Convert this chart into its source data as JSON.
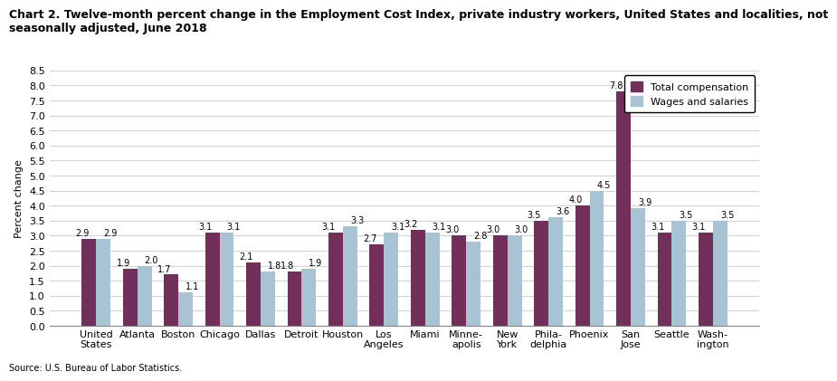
{
  "title": "Chart 2. Twelve-month percent change in the Employment Cost Index, private industry workers, United States and localities, not\nseasonally adjusted, June 2018",
  "ylabel": "Percent change",
  "source": "Source: U.S. Bureau of Labor Statistics.",
  "categories": [
    "United\nStates",
    "Atlanta",
    "Boston",
    "Chicago",
    "Dallas",
    "Detroit",
    "Houston",
    "Los\nAngeles",
    "Miami",
    "Minne-\napolis",
    "New\nYork",
    "Phila-\ndelphia",
    "Phoenix",
    "San\nJose",
    "Seattle",
    "Wash-\nington"
  ],
  "total_compensation": [
    2.9,
    1.9,
    1.7,
    3.1,
    2.1,
    1.8,
    3.1,
    2.7,
    3.2,
    3.0,
    3.0,
    3.5,
    4.0,
    7.8,
    3.1,
    3.1
  ],
  "wages_salaries": [
    2.9,
    2.0,
    1.1,
    3.1,
    1.8,
    1.9,
    3.3,
    3.1,
    3.1,
    2.8,
    3.0,
    3.6,
    4.5,
    3.9,
    3.5,
    3.5
  ],
  "tc_labels": [
    "2.9",
    "1.9",
    "1.7",
    "3.1",
    "2.1",
    "1.8",
    "3.1",
    "2.7",
    "3.2",
    "3.0",
    "3.0",
    "3.5",
    "4.0",
    "7.8",
    "3.1",
    "3.1"
  ],
  "ws_labels": [
    "2.9",
    "2.0",
    "1.1",
    "3.1",
    "1.8",
    "1.9",
    "3.3",
    "3.1",
    "3.1",
    "2.8",
    "3.0",
    "3.6",
    "4.5",
    "3.9",
    "3.5",
    "3.5"
  ],
  "tc_color": "#722F5A",
  "ws_color": "#A8C4D4",
  "ylim": [
    0.0,
    8.5
  ],
  "yticks": [
    0.0,
    0.5,
    1.0,
    1.5,
    2.0,
    2.5,
    3.0,
    3.5,
    4.0,
    4.5,
    5.0,
    5.5,
    6.0,
    6.5,
    7.0,
    7.5,
    8.0,
    8.5
  ],
  "legend_tc": "Total compensation",
  "legend_ws": "Wages and salaries",
  "bar_width": 0.35,
  "title_fontsize": 9,
  "axis_fontsize": 8,
  "tick_fontsize": 8,
  "label_fontsize": 7
}
